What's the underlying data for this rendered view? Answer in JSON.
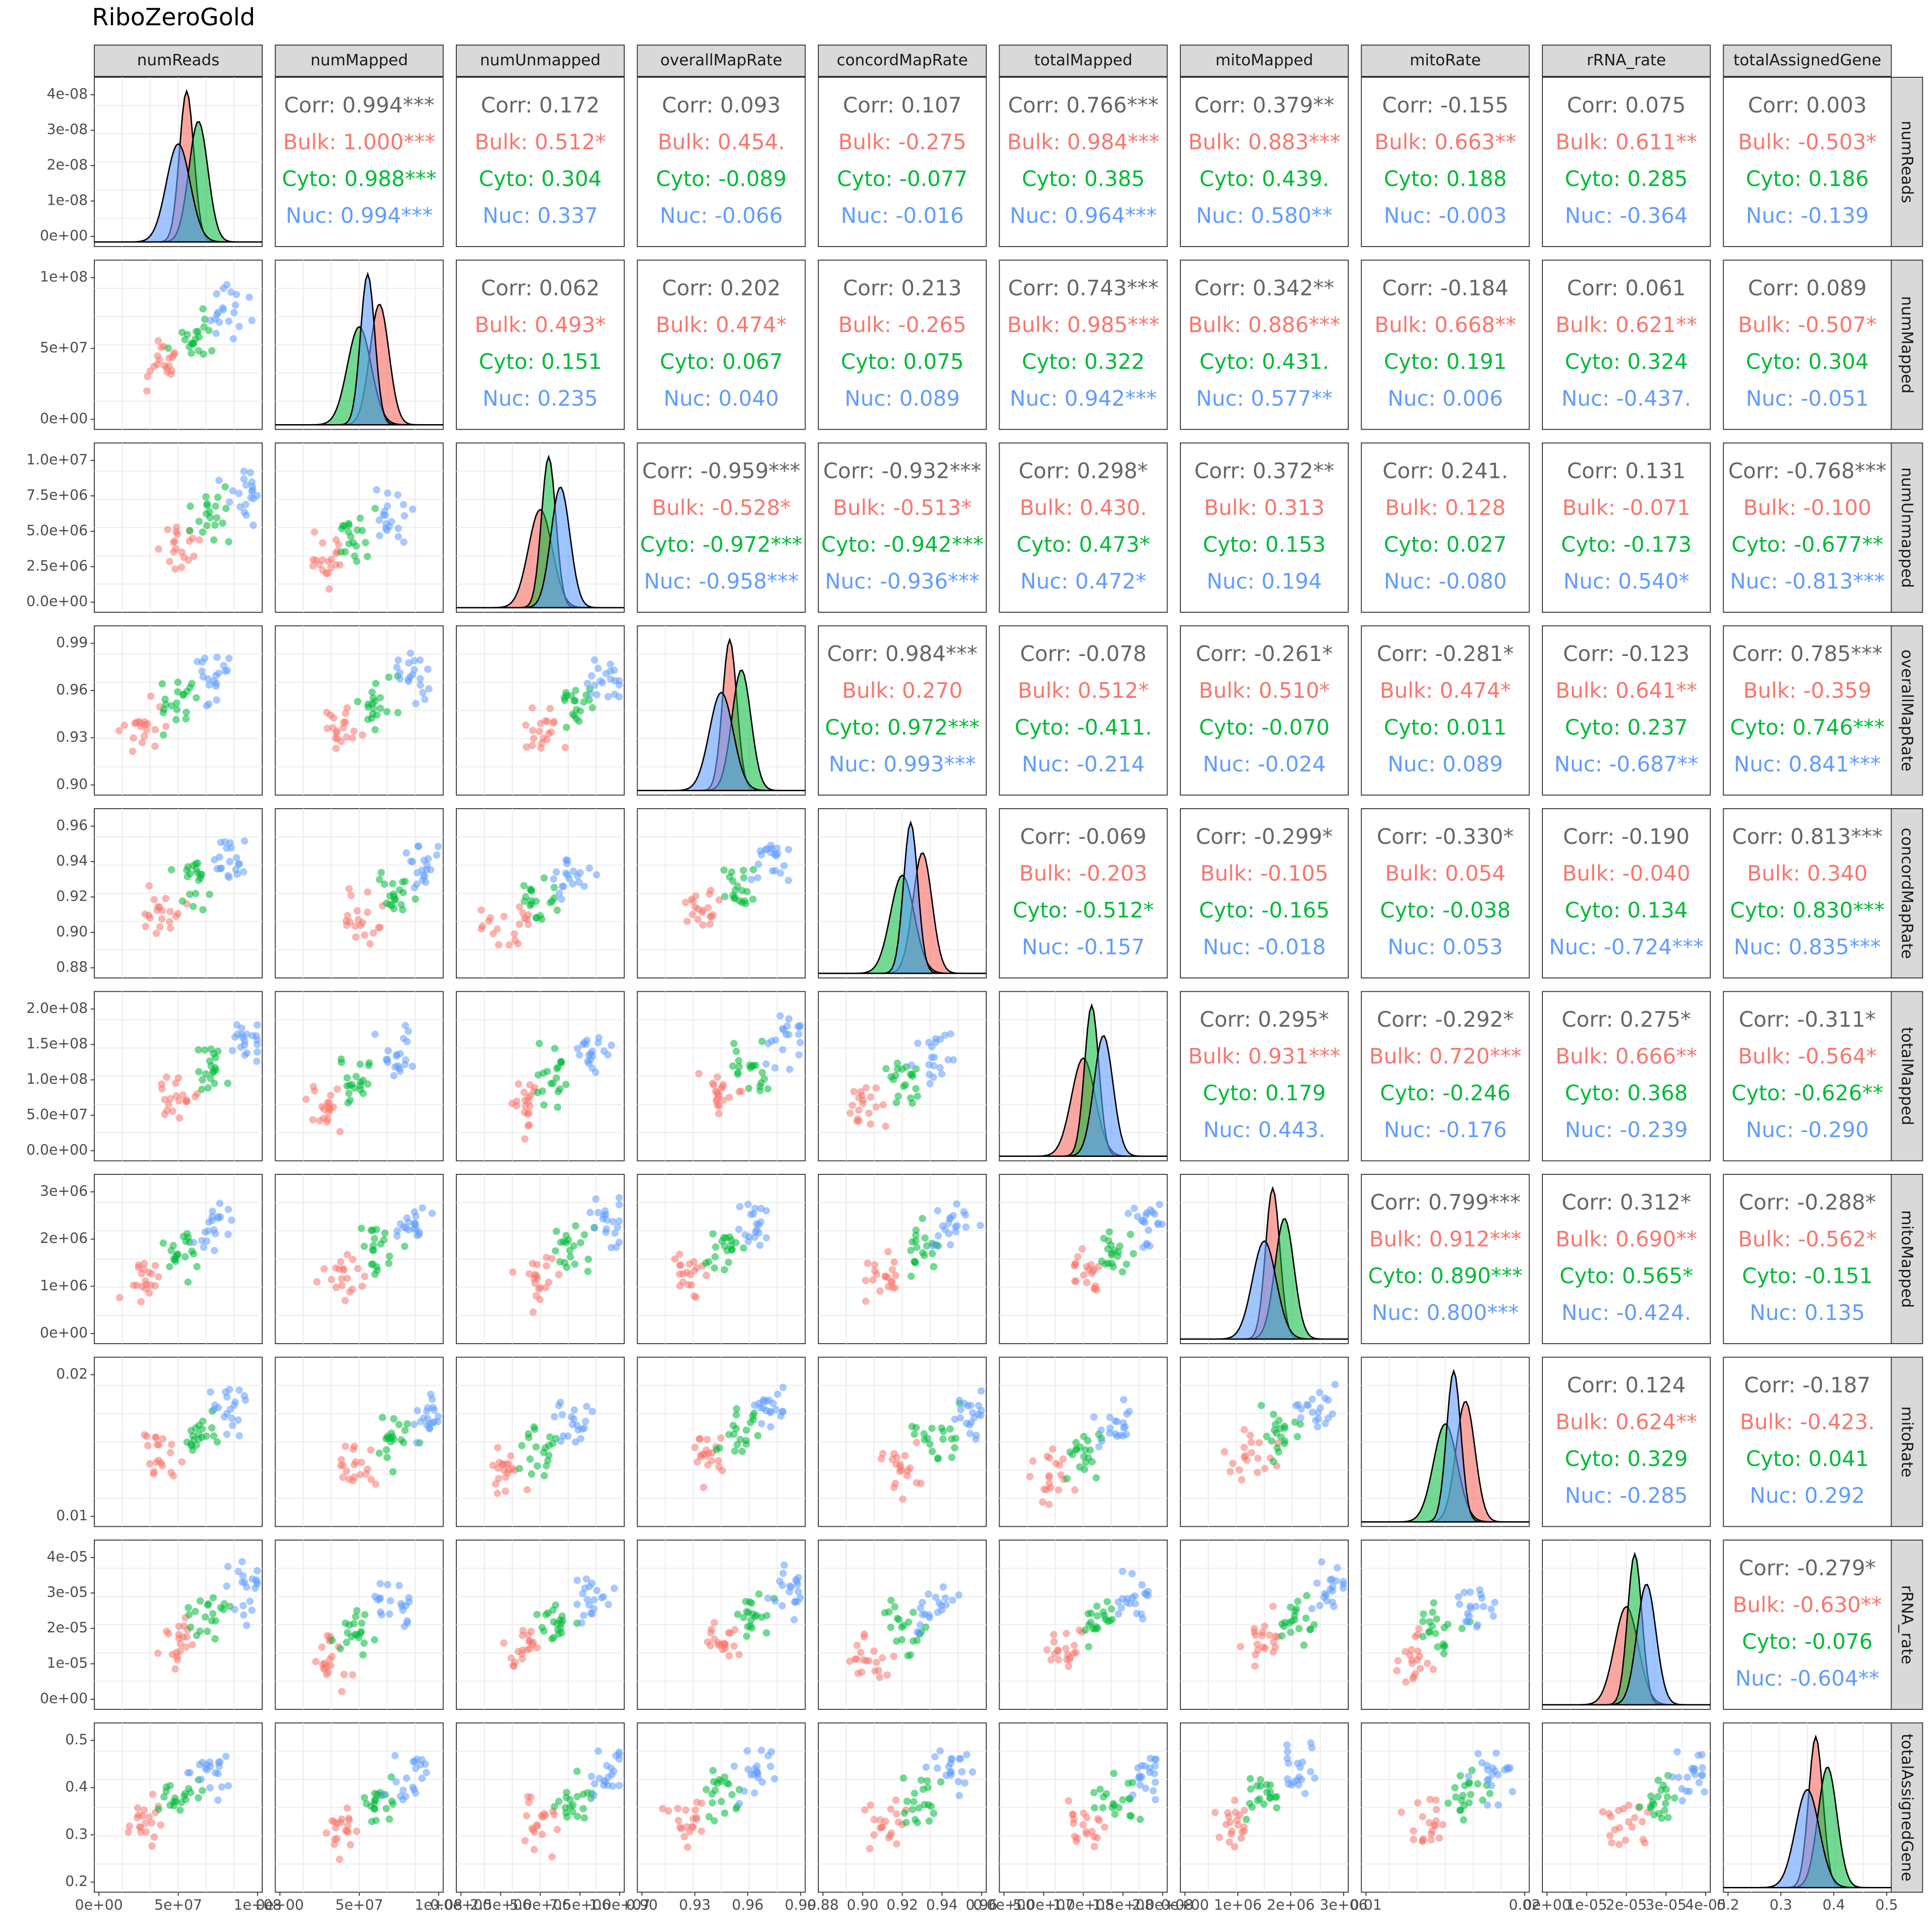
{
  "chart_data": {
    "type": "pairs",
    "title": "RiboZeroGold",
    "variables": [
      "numReads",
      "numMapped",
      "numUnmapped",
      "overallMapRate",
      "concordMapRate",
      "totalMapped",
      "mitoMapped",
      "mitoRate",
      "rRNA_rate",
      "totalAssignedGene"
    ],
    "groups": [
      {
        "name": "Bulk",
        "color": "#F8766D"
      },
      {
        "name": "Cyto",
        "color": "#00BA38"
      },
      {
        "name": "Nuc",
        "color": "#619CFF"
      }
    ],
    "overall_color": "#666666",
    "y_axes": [
      {
        "var": "numReads",
        "ticks": [
          "0e+00",
          "1e-08",
          "2e-08",
          "3e-08",
          "4e-08"
        ]
      },
      {
        "var": "numMapped",
        "ticks": [
          "0e+00",
          "5e+07",
          "1e+08"
        ]
      },
      {
        "var": "numUnmapped",
        "ticks": [
          "0.0e+00",
          "2.5e+06",
          "5.0e+06",
          "7.5e+06",
          "1.0e+07"
        ]
      },
      {
        "var": "overallMapRate",
        "ticks": [
          "0.90",
          "0.93",
          "0.96",
          "0.99"
        ]
      },
      {
        "var": "concordMapRate",
        "ticks": [
          "0.88",
          "0.90",
          "0.92",
          "0.94",
          "0.96"
        ]
      },
      {
        "var": "totalMapped",
        "ticks": [
          "0.0e+00",
          "5.0e+07",
          "1.0e+08",
          "1.5e+08",
          "2.0e+08"
        ]
      },
      {
        "var": "mitoMapped",
        "ticks": [
          "0e+00",
          "1e+06",
          "2e+06",
          "3e+06"
        ]
      },
      {
        "var": "mitoRate",
        "ticks": [
          "0.01",
          "0.02"
        ]
      },
      {
        "var": "rRNA_rate",
        "ticks": [
          "0e+00",
          "1e-05",
          "2e-05",
          "3e-05",
          "4e-05"
        ]
      },
      {
        "var": "totalAssignedGene",
        "ticks": [
          "0.2",
          "0.3",
          "0.4",
          "0.5"
        ]
      }
    ],
    "x_axes": [
      {
        "var": "numReads",
        "ticks": [
          "0e+00",
          "5e+07",
          "1e+08"
        ]
      },
      {
        "var": "numMapped",
        "ticks": [
          "0e+00",
          "5e+07",
          "1e+08"
        ]
      },
      {
        "var": "numUnmapped",
        "ticks": [
          "0.0e+00",
          "2.5e+06",
          "5.0e+06",
          "7.5e+06",
          "1.0e+07"
        ]
      },
      {
        "var": "overallMapRate",
        "ticks": [
          "0.90",
          "0.93",
          "0.96",
          "0.99"
        ]
      },
      {
        "var": "concordMapRate",
        "ticks": [
          "0.88",
          "0.90",
          "0.92",
          "0.94",
          "0.96"
        ]
      },
      {
        "var": "totalMapped",
        "ticks": [
          "0.0e+00",
          "5.0e+07",
          "1.0e+08",
          "1.5e+08",
          "2.0e+08"
        ]
      },
      {
        "var": "mitoMapped",
        "ticks": [
          "0e+00",
          "1e+06",
          "2e+06",
          "3e+06"
        ]
      },
      {
        "var": "mitoRate",
        "ticks": [
          "0.01",
          "0.02"
        ]
      },
      {
        "var": "rRNA_rate",
        "ticks": [
          "0e+00",
          "1e-05",
          "2e-05",
          "3e-05",
          "4e-05"
        ]
      },
      {
        "var": "totalAssignedGene",
        "ticks": [
          "0.2",
          "0.3",
          "0.4",
          "0.5"
        ]
      }
    ],
    "correlations": [
      {
        "row": "numReads",
        "col": "numMapped",
        "lines": [
          "Corr: 0.994***",
          "Bulk: 1.000***",
          "Cyto: 0.988***",
          "Nuc: 0.994***"
        ]
      },
      {
        "row": "numReads",
        "col": "numUnmapped",
        "lines": [
          "Corr: 0.172",
          "Bulk: 0.512*",
          "Cyto: 0.304",
          "Nuc: 0.337"
        ]
      },
      {
        "row": "numReads",
        "col": "overallMapRate",
        "lines": [
          "Corr: 0.093",
          "Bulk: 0.454.",
          "Cyto: -0.089",
          "Nuc: -0.066"
        ]
      },
      {
        "row": "numReads",
        "col": "concordMapRate",
        "lines": [
          "Corr: 0.107",
          "Bulk: -0.275",
          "Cyto: -0.077",
          "Nuc: -0.016"
        ]
      },
      {
        "row": "numReads",
        "col": "totalMapped",
        "lines": [
          "Corr: 0.766***",
          "Bulk: 0.984***",
          "Cyto: 0.385",
          "Nuc: 0.964***"
        ]
      },
      {
        "row": "numReads",
        "col": "mitoMapped",
        "lines": [
          "Corr: 0.379**",
          "Bulk: 0.883***",
          "Cyto: 0.439.",
          "Nuc: 0.580**"
        ]
      },
      {
        "row": "numReads",
        "col": "mitoRate",
        "lines": [
          "Corr: -0.155",
          "Bulk: 0.663**",
          "Cyto: 0.188",
          "Nuc: -0.003"
        ]
      },
      {
        "row": "numReads",
        "col": "rRNA_rate",
        "lines": [
          "Corr: 0.075",
          "Bulk: 0.611**",
          "Cyto: 0.285",
          "Nuc: -0.364"
        ]
      },
      {
        "row": "numReads",
        "col": "totalAssignedGene",
        "lines": [
          "Corr: 0.003",
          "Bulk: -0.503*",
          "Cyto: 0.186",
          "Nuc: -0.139"
        ]
      },
      {
        "row": "numMapped",
        "col": "numUnmapped",
        "lines": [
          "Corr: 0.062",
          "Bulk: 0.493*",
          "Cyto: 0.151",
          "Nuc: 0.235"
        ]
      },
      {
        "row": "numMapped",
        "col": "overallMapRate",
        "lines": [
          "Corr: 0.202",
          "Bulk: 0.474*",
          "Cyto: 0.067",
          "Nuc: 0.040"
        ]
      },
      {
        "row": "numMapped",
        "col": "concordMapRate",
        "lines": [
          "Corr: 0.213",
          "Bulk: -0.265",
          "Cyto: 0.075",
          "Nuc: 0.089"
        ]
      },
      {
        "row": "numMapped",
        "col": "totalMapped",
        "lines": [
          "Corr: 0.743***",
          "Bulk: 0.985***",
          "Cyto: 0.322",
          "Nuc: 0.942***"
        ]
      },
      {
        "row": "numMapped",
        "col": "mitoMapped",
        "lines": [
          "Corr: 0.342**",
          "Bulk: 0.886***",
          "Cyto: 0.431.",
          "Nuc: 0.577**"
        ]
      },
      {
        "row": "numMapped",
        "col": "mitoRate",
        "lines": [
          "Corr: -0.184",
          "Bulk: 0.668**",
          "Cyto: 0.191",
          "Nuc: 0.006"
        ]
      },
      {
        "row": "numMapped",
        "col": "rRNA_rate",
        "lines": [
          "Corr: 0.061",
          "Bulk: 0.621**",
          "Cyto: 0.324",
          "Nuc: -0.437."
        ]
      },
      {
        "row": "numMapped",
        "col": "totalAssignedGene",
        "lines": [
          "Corr: 0.089",
          "Bulk: -0.507*",
          "Cyto: 0.304",
          "Nuc: -0.051"
        ]
      },
      {
        "row": "numUnmapped",
        "col": "overallMapRate",
        "lines": [
          "Corr: -0.959***",
          "Bulk: -0.528*",
          "Cyto: -0.972***",
          "Nuc: -0.958***"
        ]
      },
      {
        "row": "numUnmapped",
        "col": "concordMapRate",
        "lines": [
          "Corr: -0.932***",
          "Bulk: -0.513*",
          "Cyto: -0.942***",
          "Nuc: -0.936***"
        ]
      },
      {
        "row": "numUnmapped",
        "col": "totalMapped",
        "lines": [
          "Corr: 0.298*",
          "Bulk: 0.430.",
          "Cyto: 0.473*",
          "Nuc: 0.472*"
        ]
      },
      {
        "row": "numUnmapped",
        "col": "mitoMapped",
        "lines": [
          "Corr: 0.372**",
          "Bulk: 0.313",
          "Cyto: 0.153",
          "Nuc: 0.194"
        ]
      },
      {
        "row": "numUnmapped",
        "col": "mitoRate",
        "lines": [
          "Corr: 0.241.",
          "Bulk: 0.128",
          "Cyto: 0.027",
          "Nuc: -0.080"
        ]
      },
      {
        "row": "numUnmapped",
        "col": "rRNA_rate",
        "lines": [
          "Corr: 0.131",
          "Bulk: -0.071",
          "Cyto: -0.173",
          "Nuc: 0.540*"
        ]
      },
      {
        "row": "numUnmapped",
        "col": "totalAssignedGene",
        "lines": [
          "Corr: -0.768***",
          "Bulk: -0.100",
          "Cyto: -0.677**",
          "Nuc: -0.813***"
        ]
      },
      {
        "row": "overallMapRate",
        "col": "concordMapRate",
        "lines": [
          "Corr: 0.984***",
          "Bulk: 0.270",
          "Cyto: 0.972***",
          "Nuc: 0.993***"
        ]
      },
      {
        "row": "overallMapRate",
        "col": "totalMapped",
        "lines": [
          "Corr: -0.078",
          "Bulk: 0.512*",
          "Cyto: -0.411.",
          "Nuc: -0.214"
        ]
      },
      {
        "row": "overallMapRate",
        "col": "mitoMapped",
        "lines": [
          "Corr: -0.261*",
          "Bulk: 0.510*",
          "Cyto: -0.070",
          "Nuc: -0.024"
        ]
      },
      {
        "row": "overallMapRate",
        "col": "mitoRate",
        "lines": [
          "Corr: -0.281*",
          "Bulk: 0.474*",
          "Cyto: 0.011",
          "Nuc: 0.089"
        ]
      },
      {
        "row": "overallMapRate",
        "col": "rRNA_rate",
        "lines": [
          "Corr: -0.123",
          "Bulk: 0.641**",
          "Cyto: 0.237",
          "Nuc: -0.687**"
        ]
      },
      {
        "row": "overallMapRate",
        "col": "totalAssignedGene",
        "lines": [
          "Corr: 0.785***",
          "Bulk: -0.359",
          "Cyto: 0.746***",
          "Nuc: 0.841***"
        ]
      },
      {
        "row": "concordMapRate",
        "col": "totalMapped",
        "lines": [
          "Corr: -0.069",
          "Bulk: -0.203",
          "Cyto: -0.512*",
          "Nuc: -0.157"
        ]
      },
      {
        "row": "concordMapRate",
        "col": "mitoMapped",
        "lines": [
          "Corr: -0.299*",
          "Bulk: -0.105",
          "Cyto: -0.165",
          "Nuc: -0.018"
        ]
      },
      {
        "row": "concordMapRate",
        "col": "mitoRate",
        "lines": [
          "Corr: -0.330*",
          "Bulk: 0.054",
          "Cyto: -0.038",
          "Nuc: 0.053"
        ]
      },
      {
        "row": "concordMapRate",
        "col": "rRNA_rate",
        "lines": [
          "Corr: -0.190",
          "Bulk: -0.040",
          "Cyto: 0.134",
          "Nuc: -0.724***"
        ]
      },
      {
        "row": "concordMapRate",
        "col": "totalAssignedGene",
        "lines": [
          "Corr: 0.813***",
          "Bulk: 0.340",
          "Cyto: 0.830***",
          "Nuc: 0.835***"
        ]
      },
      {
        "row": "totalMapped",
        "col": "mitoMapped",
        "lines": [
          "Corr: 0.295*",
          "Bulk: 0.931***",
          "Cyto: 0.179",
          "Nuc: 0.443."
        ]
      },
      {
        "row": "totalMapped",
        "col": "mitoRate",
        "lines": [
          "Corr: -0.292*",
          "Bulk: 0.720***",
          "Cyto: -0.246",
          "Nuc: -0.176"
        ]
      },
      {
        "row": "totalMapped",
        "col": "rRNA_rate",
        "lines": [
          "Corr: 0.275*",
          "Bulk: 0.666**",
          "Cyto: 0.368",
          "Nuc: -0.239"
        ]
      },
      {
        "row": "totalMapped",
        "col": "totalAssignedGene",
        "lines": [
          "Corr: -0.311*",
          "Bulk: -0.564*",
          "Cyto: -0.626**",
          "Nuc: -0.290"
        ]
      },
      {
        "row": "mitoMapped",
        "col": "mitoRate",
        "lines": [
          "Corr: 0.799***",
          "Bulk: 0.912***",
          "Cyto: 0.890***",
          "Nuc: 0.800***"
        ]
      },
      {
        "row": "mitoMapped",
        "col": "rRNA_rate",
        "lines": [
          "Corr: 0.312*",
          "Bulk: 0.690**",
          "Cyto: 0.565*",
          "Nuc: -0.424."
        ]
      },
      {
        "row": "mitoMapped",
        "col": "totalAssignedGene",
        "lines": [
          "Corr: -0.288*",
          "Bulk: -0.562*",
          "Cyto: -0.151",
          "Nuc: 0.135"
        ]
      },
      {
        "row": "mitoRate",
        "col": "rRNA_rate",
        "lines": [
          "Corr: 0.124",
          "Bulk: 0.624**",
          "Cyto: 0.329",
          "Nuc: -0.285"
        ]
      },
      {
        "row": "mitoRate",
        "col": "totalAssignedGene",
        "lines": [
          "Corr: -0.187",
          "Bulk: -0.423.",
          "Cyto: 0.041",
          "Nuc: 0.292"
        ]
      },
      {
        "row": "rRNA_rate",
        "col": "totalAssignedGene",
        "lines": [
          "Corr: -0.279*",
          "Bulk: -0.630**",
          "Cyto: -0.076",
          "Nuc: -0.604**"
        ]
      }
    ]
  }
}
